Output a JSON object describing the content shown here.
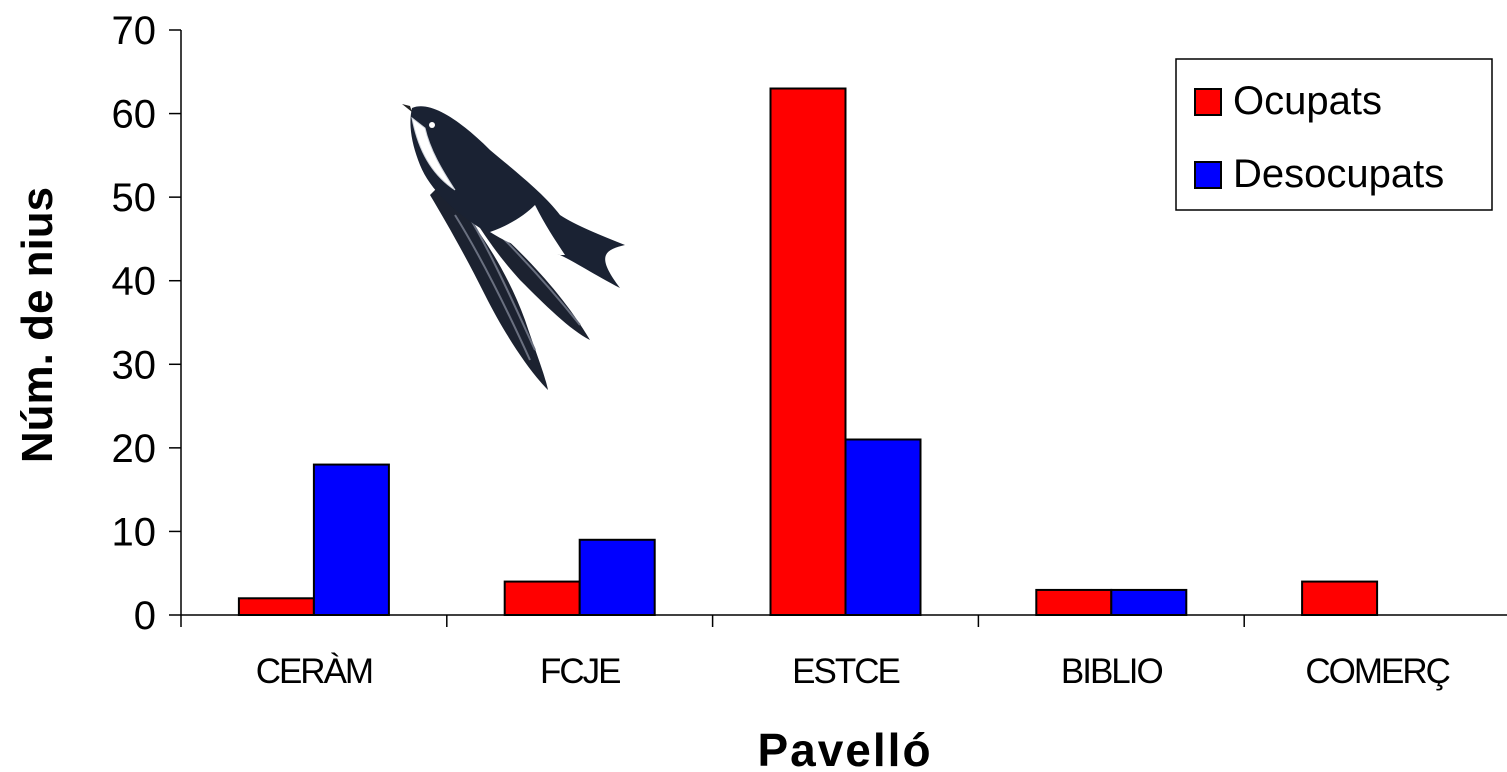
{
  "chart_data": {
    "type": "bar",
    "categories": [
      "CERÀM",
      "FCJE",
      "ESTCE",
      "BIBLIO",
      "COMERÇ"
    ],
    "series": [
      {
        "name": "Ocupats",
        "values": [
          2,
          4,
          63,
          3,
          4
        ],
        "color": "#ff0000"
      },
      {
        "name": "Desocupats",
        "values": [
          18,
          9,
          21,
          3,
          0
        ],
        "color": "#0000ff"
      }
    ],
    "xlabel": "Pavelló",
    "ylabel": "Núm. de nius",
    "ylim": [
      0,
      70
    ],
    "yticks": [
      0,
      10,
      20,
      30,
      40,
      50,
      60,
      70
    ],
    "grid": false,
    "legend_position": "top-right"
  },
  "decorations": {
    "illustration_icon": "swallow-bird-illustration"
  }
}
